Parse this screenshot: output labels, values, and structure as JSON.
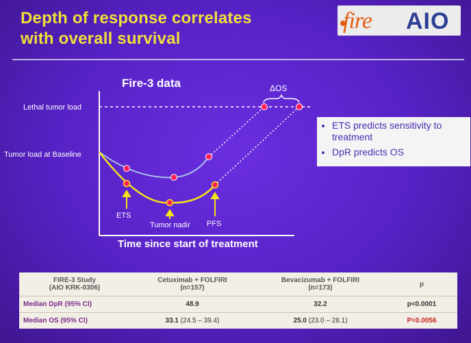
{
  "slide": {
    "title_line1": "Depth of response correlates",
    "title_line2": "with overall survival",
    "logo_fire": "fire",
    "logo_aio": "AIO"
  },
  "chart": {
    "title": "Fire-3 data",
    "y_labels": {
      "lethal": "Lethal tumor load",
      "baseline": "Tumor load at Baseline"
    },
    "x_label": "Time since start of treatment",
    "delta_os": "ΔOS",
    "annotations": {
      "ets": "ETS",
      "nadir": "Tumor nadir",
      "pfs": "PFS"
    },
    "colors": {
      "upper_curve": "#a9c3e8",
      "lower_curve": "#f6e21a",
      "marker": "#ff1f5a",
      "dashed": "#ffffff"
    }
  },
  "bullets": [
    "ETS predicts sensitivity to treatment",
    "DpR predicts OS"
  ],
  "table": {
    "headers": {
      "study_line1": "FIRE-3 Study",
      "study_line2": "(AIO KRK-0306)",
      "cet_line1": "Cetuximab + FOLFIRI",
      "cet_line2": "(n=157)",
      "bev_line1": "Bevacizumab + FOLFIRI",
      "bev_line2": "(n=173)",
      "p": "p"
    },
    "rows": [
      {
        "label": "Median DpR (95% CI)",
        "cet": "48.9",
        "cet_ci": "",
        "bev": "32.2",
        "bev_ci": "",
        "p": "p<0.0001"
      },
      {
        "label": "Median OS (95% CI)",
        "cet": "33.1",
        "cet_ci": "(24.5 – 39.4)",
        "bev": "25.0",
        "bev_ci": "(23.0 – 28.1)",
        "p": "P=0.0056"
      }
    ]
  }
}
